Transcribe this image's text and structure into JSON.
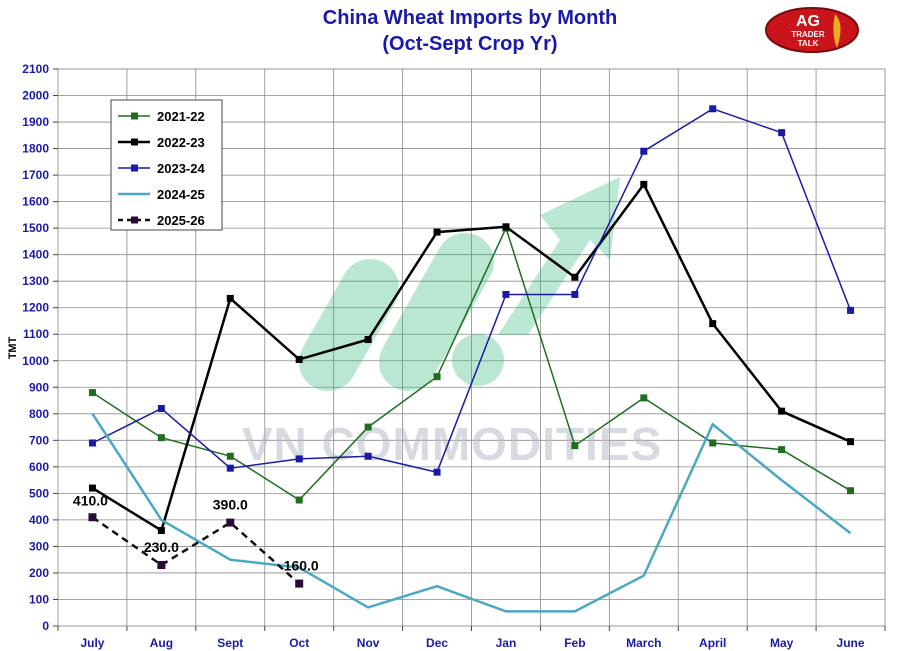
{
  "chart_data": {
    "type": "line",
    "title": "China Wheat Imports by Month",
    "subtitle": "(Oct-Sept Crop Yr)",
    "ylabel": "TMT",
    "xlabel": "",
    "ylim": [
      0,
      2100
    ],
    "ytick_step": 100,
    "grid": true,
    "legend_position": "top-left",
    "categories": [
      "July",
      "Aug",
      "Sept",
      "Oct",
      "Nov",
      "Dec",
      "Jan",
      "Feb",
      "March",
      "April",
      "May",
      "June"
    ],
    "series": [
      {
        "name": "2021-22",
        "color": "#1e6e1e",
        "width": 1.5,
        "dashed": false,
        "marker": "square",
        "values": [
          880,
          710,
          640,
          475,
          750,
          940,
          1500,
          680,
          860,
          690,
          665,
          510
        ]
      },
      {
        "name": "2022-23",
        "color": "#000000",
        "width": 2.5,
        "dashed": false,
        "marker": "square",
        "values": [
          520,
          360,
          1235,
          1005,
          1080,
          1485,
          1505,
          1315,
          1665,
          1140,
          810,
          695
        ]
      },
      {
        "name": "2023-24",
        "color": "#1a1aa8",
        "width": 1.5,
        "dashed": false,
        "marker": "square",
        "values": [
          690,
          820,
          595,
          630,
          640,
          580,
          1250,
          1250,
          1790,
          1950,
          1860,
          1190
        ]
      },
      {
        "name": "2024-25",
        "color": "#4aa8c4",
        "width": 2.5,
        "dashed": false,
        "marker": "none",
        "values": [
          800,
          400,
          250,
          220,
          70,
          150,
          55,
          55,
          190,
          760,
          550,
          350
        ]
      },
      {
        "name": "2025-26",
        "color": "#111111",
        "width": 2.5,
        "dashed": true,
        "marker": "square",
        "marker_color": "#2a0a3a",
        "values": [
          410,
          230,
          390,
          160,
          null,
          null,
          null,
          null,
          null,
          null,
          null,
          null
        ]
      }
    ],
    "annotations": [
      "410.0",
      "230.0",
      "390.0",
      "160.0"
    ]
  },
  "watermark": {
    "text": "VN COMMODITIES",
    "arrow_color": "#2bb673",
    "text_color": "#a9adbd"
  },
  "logo": {
    "line1": "AG",
    "line2": "TRADER",
    "line3": "TALK",
    "color": "#c8141a"
  }
}
